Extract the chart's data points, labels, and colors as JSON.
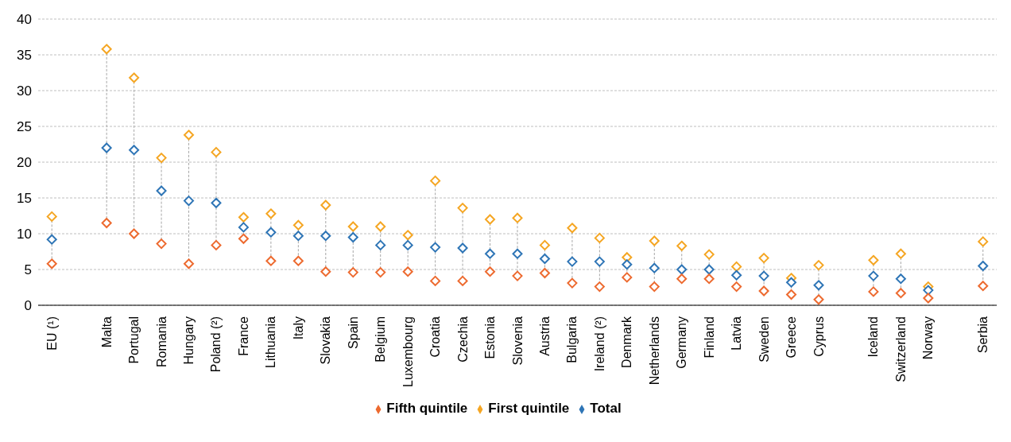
{
  "chart_data": {
    "type": "scatter",
    "categories": [
      "EU (¹)",
      null,
      "Malta",
      "Portugal",
      "Romania",
      "Hungary",
      "Poland (²)",
      "France",
      "Lithuania",
      "Italy",
      "Slovakia",
      "Spain",
      "Belgium",
      "Luxembourg",
      "Croatia",
      "Czechia",
      "Estonia",
      "Slovenia",
      "Austria",
      "Bulgaria",
      "Ireland (²)",
      "Denmark",
      "Netherlands",
      "Germany",
      "Finland",
      "Latvia",
      "Sweden",
      "Greece",
      "Cyprus",
      null,
      "Iceland",
      "Switzerland",
      "Norway",
      null,
      "Serbia"
    ],
    "series": [
      {
        "name": "First quintile",
        "color": "#f5a623",
        "values": [
          12.4,
          null,
          35.8,
          31.8,
          20.6,
          23.8,
          21.4,
          12.3,
          12.8,
          11.2,
          14.0,
          11.0,
          11.0,
          9.8,
          17.4,
          13.6,
          12.0,
          12.2,
          8.4,
          10.8,
          9.4,
          6.7,
          9.0,
          8.3,
          7.1,
          5.4,
          6.6,
          3.8,
          5.6,
          null,
          6.3,
          7.2,
          2.6,
          null,
          8.9
        ]
      },
      {
        "name": "Total",
        "color": "#2e75b6",
        "values": [
          9.2,
          null,
          22.0,
          21.7,
          16.0,
          14.6,
          14.3,
          10.9,
          10.2,
          9.7,
          9.7,
          9.5,
          8.4,
          8.4,
          8.1,
          8.0,
          7.2,
          7.2,
          6.5,
          6.1,
          6.1,
          5.7,
          5.2,
          5.0,
          5.0,
          4.2,
          4.1,
          3.2,
          2.8,
          null,
          4.1,
          3.7,
          2.1,
          null,
          5.5
        ]
      },
      {
        "name": "Fifth quintile",
        "color": "#ed6a2f",
        "values": [
          5.8,
          null,
          11.5,
          10.0,
          8.6,
          5.8,
          8.4,
          9.3,
          6.2,
          6.2,
          4.7,
          4.6,
          4.6,
          4.7,
          3.4,
          3.4,
          4.7,
          4.1,
          4.5,
          3.1,
          2.6,
          3.9,
          2.6,
          3.7,
          3.7,
          2.6,
          2.0,
          1.5,
          0.8,
          null,
          1.9,
          1.7,
          1.0,
          null,
          2.7
        ]
      }
    ],
    "ylim": [
      0,
      40
    ],
    "yticks": [
      0,
      5,
      10,
      15,
      20,
      25,
      30,
      35,
      40
    ],
    "grid": "y",
    "legend": "bottom",
    "marker": "diamond"
  }
}
